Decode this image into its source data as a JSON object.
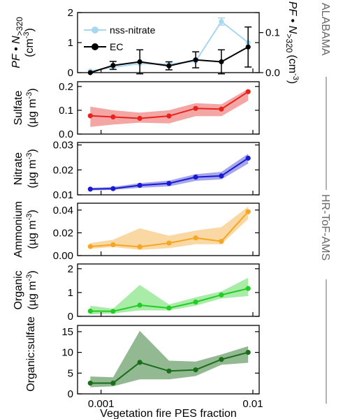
{
  "chart_data": {
    "type": "line",
    "xlabel": "Vegetation fire PES fraction",
    "xscale": "log",
    "xlim": [
      0.0007,
      0.011
    ],
    "x_ticks": [
      0.001,
      0.01
    ],
    "x_tick_labels": [
      "0.001",
      "0.01"
    ],
    "x": [
      0.00085,
      0.0012,
      0.0018,
      0.0028,
      0.0042,
      0.0062,
      0.0093
    ],
    "side_labels": {
      "top": "ALABAMA",
      "bottom": "HR-ToF-AMS"
    },
    "panels": [
      {
        "id": "pf-n320",
        "ylabel_parts": {
          "pf": "PF",
          "bullet": " • ",
          "n": "N",
          "sub": ">320",
          "unit_pre": "(cm",
          "unit_sup": "-3",
          "unit_post": ")"
        },
        "ylim": [
          0,
          2
        ],
        "yticks": [
          0,
          1,
          2
        ],
        "ytick_labels": [
          "0",
          "1",
          "2"
        ],
        "right_axis": {
          "label_parts": {
            "pf": "PF",
            "bullet": " • ",
            "n": "N",
            "sub": ">320",
            "unit_pre": "(cm",
            "unit_sup": "-3",
            "unit_post": ")"
          },
          "ylim": [
            0,
            0.15
          ],
          "yticks": [
            0,
            0.1
          ],
          "ytick_labels": [
            "0.0",
            "0.1"
          ]
        },
        "legend": {
          "position": "top-left"
        },
        "series": [
          {
            "name": "nss-nitrate",
            "axis": "left",
            "color": "#a8d8f0",
            "marker_color": "#a8d8f0",
            "values": [
              0.05,
              0.18,
              0.3,
              0.28,
              0.38,
              1.7,
              1.0
            ],
            "errors": [
              0,
              0,
              0,
              0,
              0,
              0.12,
              0
            ]
          },
          {
            "name": "EC",
            "axis": "right",
            "color": "#000000",
            "marker_color": "#000000",
            "values": [
              0.0,
              0.018,
              0.027,
              0.017,
              0.032,
              0.027,
              0.064
            ],
            "errors": [
              0,
              0.01,
              0.03,
              0.01,
              0.02,
              0.03,
              0.05
            ]
          }
        ]
      },
      {
        "id": "sulfate",
        "ylabel_parts": {
          "line1": "Sulfate",
          "unit_pre": "(µg m",
          "unit_sup": "-3",
          "unit_post": ")"
        },
        "ylim": [
          0,
          0.22
        ],
        "yticks": [
          0,
          0.1,
          0.2
        ],
        "ytick_labels": [
          "0.0",
          "0.1",
          "0.2"
        ],
        "series": [
          {
            "name": "",
            "color": "#e8231e",
            "band_color": "#f4a6a4",
            "values": [
              0.077,
              0.072,
              0.066,
              0.076,
              0.108,
              0.105,
              0.178
            ],
            "band_low": [
              0.03,
              0.04,
              0.048,
              0.045,
              0.075,
              0.075,
              0.14
            ],
            "band_high": [
              0.115,
              0.1,
              0.09,
              0.1,
              0.13,
              0.125,
              0.19
            ]
          }
        ]
      },
      {
        "id": "nitrate",
        "ylabel_parts": {
          "line1": "Nitrate",
          "unit_pre": "(µg m",
          "unit_sup": "-3",
          "unit_post": ")"
        },
        "ylim": [
          0.01,
          0.031
        ],
        "yticks": [
          0.01,
          0.02,
          0.03
        ],
        "ytick_labels": [
          "0.01",
          "0.02",
          "0.03"
        ],
        "series": [
          {
            "name": "",
            "color": "#1a1ad4",
            "band_color": "#a6a6ec",
            "values": [
              0.0123,
              0.0125,
              0.0138,
              0.0146,
              0.0171,
              0.0176,
              0.0247
            ],
            "band_low": [
              0.0118,
              0.012,
              0.0128,
              0.0134,
              0.0156,
              0.0162,
              0.0225
            ],
            "band_high": [
              0.0128,
              0.0132,
              0.0147,
              0.0157,
              0.0183,
              0.0192,
              0.0265
            ]
          }
        ]
      },
      {
        "id": "ammonium",
        "ylabel_parts": {
          "line1": "Ammonium",
          "unit_pre": "(µg m",
          "unit_sup": "-3",
          "unit_post": ")"
        },
        "ylim": [
          0,
          0.046
        ],
        "yticks": [
          0,
          0.02,
          0.04
        ],
        "ytick_labels": [
          "0.00",
          "0.02",
          "0.04"
        ],
        "series": [
          {
            "name": "",
            "color": "#f5a623",
            "band_color": "#fad8a4",
            "values": [
              0.008,
              0.0095,
              0.0077,
              0.011,
              0.0155,
              0.0125,
              0.0385
            ],
            "band_low": [
              0.006,
              0.0075,
              0.005,
              0.0065,
              0.01,
              0.01,
              0.032
            ],
            "band_high": [
              0.011,
              0.014,
              0.024,
              0.0175,
              0.022,
              0.025,
              0.043
            ]
          }
        ]
      },
      {
        "id": "organic",
        "ylabel_parts": {
          "line1": "Organic",
          "unit_pre": "(µg m",
          "unit_sup": "-3",
          "unit_post": ")"
        },
        "ylim": [
          0,
          2.2
        ],
        "yticks": [
          0,
          1,
          2
        ],
        "ytick_labels": [
          "0",
          "1",
          "2"
        ],
        "series": [
          {
            "name": "",
            "color": "#22cc22",
            "band_color": "#a8eca8",
            "values": [
              0.22,
              0.21,
              0.47,
              0.35,
              0.6,
              0.9,
              1.17
            ],
            "band_low": [
              0.08,
              0.12,
              0.25,
              0.25,
              0.45,
              0.75,
              0.85
            ],
            "band_high": [
              0.45,
              0.32,
              1.32,
              0.5,
              0.8,
              1.05,
              1.62
            ]
          }
        ]
      },
      {
        "id": "organic-sulfate",
        "ylabel_parts": {
          "line1": "Organic:sulfate"
        },
        "ylim": [
          0,
          16.5
        ],
        "yticks": [
          0,
          5,
          10,
          15
        ],
        "ytick_labels": [
          "0",
          "5",
          "10",
          "15"
        ],
        "series": [
          {
            "name": "",
            "color": "#1a6e1a",
            "band_color": "#93b993",
            "values": [
              2.6,
              2.6,
              7.6,
              5.5,
              5.8,
              8.3,
              10.0
            ],
            "band_low": [
              1.6,
              1.8,
              3.5,
              3.5,
              4.3,
              7.0,
              7.5
            ],
            "band_high": [
              4.2,
              4.0,
              15.2,
              8.0,
              7.8,
              9.5,
              11.5
            ]
          }
        ]
      }
    ]
  }
}
